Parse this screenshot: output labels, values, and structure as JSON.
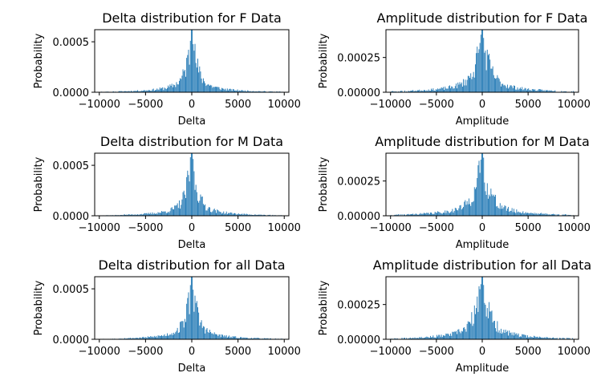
{
  "chart_data": [
    {
      "type": "bar",
      "title": "Delta distribution for F Data",
      "xlabel": "Delta",
      "ylabel": "Probability",
      "xlim": [
        -10500,
        10500
      ],
      "ylim": [
        0,
        0.00062
      ],
      "xticks": [
        -10000,
        -5000,
        0,
        5000,
        10000
      ],
      "xtick_labels": [
        "−10000",
        "−5000",
        "0",
        "5000",
        "10000"
      ],
      "yticks": [
        0,
        0.0005
      ],
      "ytick_labels": [
        "0.0000",
        "0.0005"
      ],
      "bar_color": "#1f77b4",
      "peak": 0.00062,
      "spread": 1.0,
      "seed": 11
    },
    {
      "type": "bar",
      "title": "Amplitude distribution for F Data",
      "xlabel": "Amplitude",
      "ylabel": "Probability",
      "xlim": [
        -10500,
        10500
      ],
      "ylim": [
        0,
        0.00045
      ],
      "xticks": [
        -10000,
        -5000,
        0,
        5000,
        10000
      ],
      "xtick_labels": [
        "−10000",
        "−5000",
        "0",
        "5000",
        "10000"
      ],
      "yticks": [
        0,
        0.00025
      ],
      "ytick_labels": [
        "0.00000",
        "0.00025"
      ],
      "bar_color": "#1f77b4",
      "peak": 0.00045,
      "spread": 1.35,
      "seed": 23
    },
    {
      "type": "bar",
      "title": "Delta distribution for M Data",
      "xlabel": "Delta",
      "ylabel": "Probability",
      "xlim": [
        -10500,
        10500
      ],
      "ylim": [
        0,
        0.00062
      ],
      "xticks": [
        -10000,
        -5000,
        0,
        5000,
        10000
      ],
      "xtick_labels": [
        "−10000",
        "−5000",
        "0",
        "5000",
        "10000"
      ],
      "yticks": [
        0,
        0.0005
      ],
      "ytick_labels": [
        "0.0000",
        "0.0005"
      ],
      "bar_color": "#1f77b4",
      "peak": 0.00062,
      "spread": 1.0,
      "seed": 37
    },
    {
      "type": "bar",
      "title": "Amplitude distribution for M Data",
      "xlabel": "Amplitude",
      "ylabel": "Probability",
      "xlim": [
        -10500,
        10500
      ],
      "ylim": [
        0,
        0.00045
      ],
      "xticks": [
        -10000,
        -5000,
        0,
        5000,
        10000
      ],
      "xtick_labels": [
        "−10000",
        "−5000",
        "0",
        "5000",
        "10000"
      ],
      "yticks": [
        0,
        0.00025
      ],
      "ytick_labels": [
        "0.00000",
        "0.00025"
      ],
      "bar_color": "#1f77b4",
      "peak": 0.00045,
      "spread": 1.35,
      "seed": 41
    },
    {
      "type": "bar",
      "title": "Delta distribution for all Data",
      "xlabel": "Delta",
      "ylabel": "Probability",
      "xlim": [
        -10500,
        10500
      ],
      "ylim": [
        0,
        0.00062
      ],
      "xticks": [
        -10000,
        -5000,
        0,
        5000,
        10000
      ],
      "xtick_labels": [
        "−10000",
        "−5000",
        "0",
        "5000",
        "10000"
      ],
      "yticks": [
        0,
        0.0005
      ],
      "ytick_labels": [
        "0.0000",
        "0.0005"
      ],
      "bar_color": "#1f77b4",
      "peak": 0.00062,
      "spread": 1.0,
      "seed": 53
    },
    {
      "type": "bar",
      "title": "Amplitude distribution for all Data",
      "xlabel": "Amplitude",
      "ylabel": "Probability",
      "xlim": [
        -10500,
        10500
      ],
      "ylim": [
        0,
        0.00045
      ],
      "xticks": [
        -10000,
        -5000,
        0,
        5000,
        10000
      ],
      "xtick_labels": [
        "−10000",
        "−5000",
        "0",
        "5000",
        "10000"
      ],
      "yticks": [
        0,
        0.00025
      ],
      "ytick_labels": [
        "0.00000",
        "0.00025"
      ],
      "bar_color": "#1f77b4",
      "peak": 0.00045,
      "spread": 1.35,
      "seed": 67
    }
  ]
}
